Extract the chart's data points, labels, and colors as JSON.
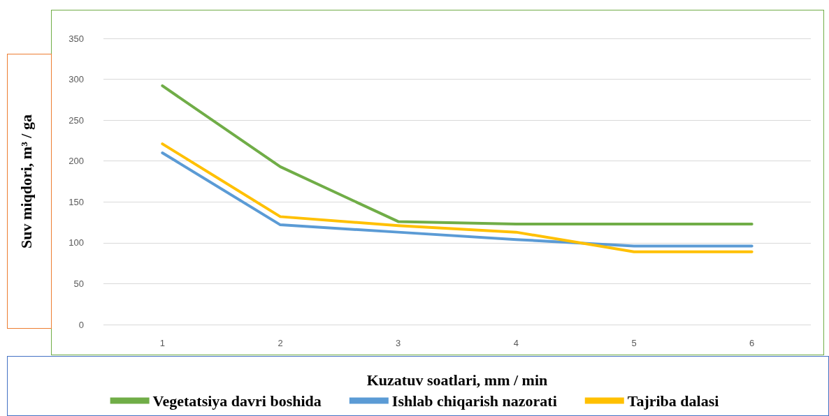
{
  "chart_data": {
    "type": "line",
    "xlabel": "Kuzatuv soatlari, mm / min",
    "ylabel": "Suv miqdori, m³ / ga",
    "categories": [
      "1",
      "2",
      "3",
      "4",
      "5",
      "6"
    ],
    "series": [
      {
        "name": "Vegetatsiya davri boshida",
        "color": "#70ad47",
        "values": [
          292,
          193,
          126,
          123,
          123,
          123
        ]
      },
      {
        "name": "Ishlab chiqarish nazorati",
        "color": "#5b9bd5",
        "values": [
          210,
          122,
          113,
          104,
          96,
          96
        ]
      },
      {
        "name": "Tajriba dalasi",
        "color": "#ffc000",
        "values": [
          221,
          132,
          121,
          113,
          89,
          89
        ]
      }
    ],
    "ylim": [
      0,
      350
    ],
    "yticks": [
      0,
      50,
      100,
      150,
      200,
      250,
      300,
      350
    ],
    "grid": "y",
    "legend": "bottom",
    "marker": "none",
    "line_style": "solid"
  }
}
